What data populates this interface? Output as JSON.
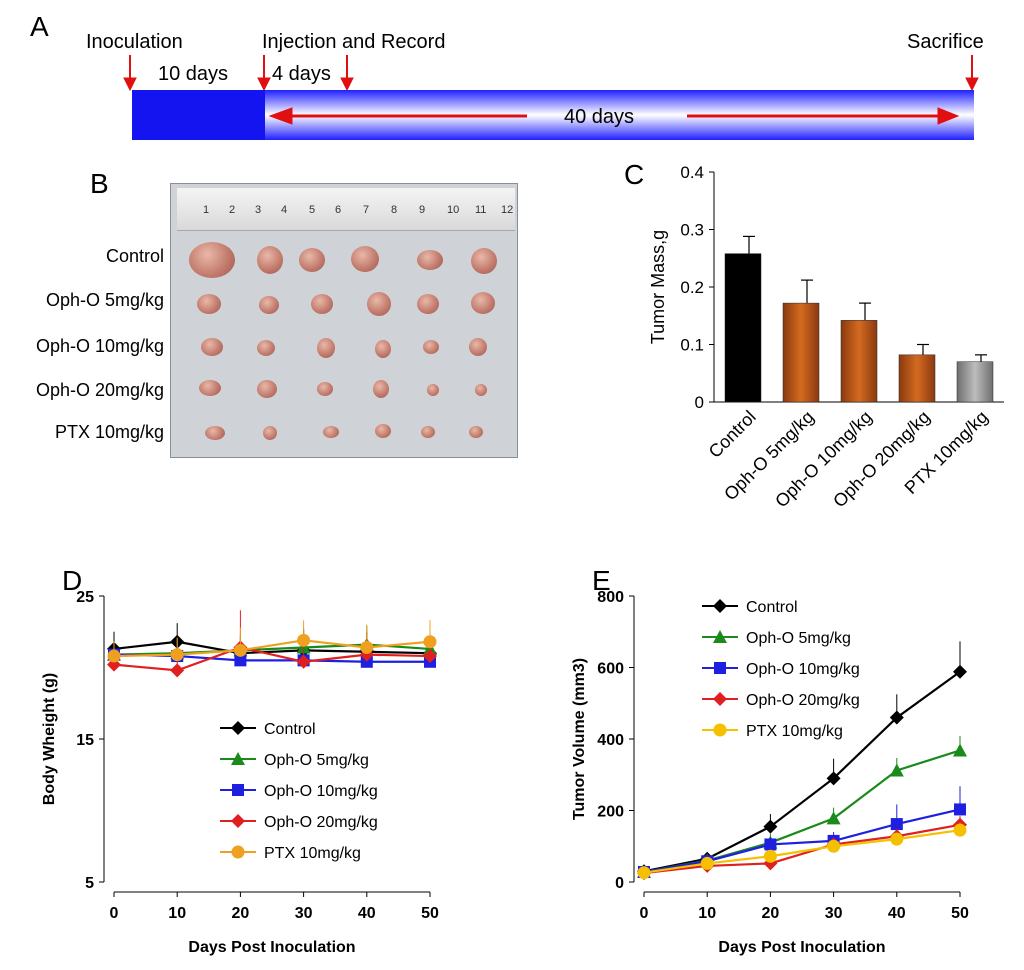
{
  "panels": {
    "a": "A",
    "b": "B",
    "c": "C",
    "d": "D",
    "e": "E"
  },
  "timeline": {
    "inoculation": "Inoculation",
    "injection": "Injection and Record",
    "sacrifice": "Sacrifice",
    "days10": "10 days",
    "days4": "4 days",
    "days40": "40 days"
  },
  "photo": {
    "row_labels": [
      "Control",
      "Oph-O 5mg/kg",
      "Oph-O 10mg/kg",
      "Oph-O 20mg/kg",
      "PTX 10mg/kg"
    ],
    "ruler_numbers": [
      "1",
      "2",
      "3",
      "4",
      "5",
      "6",
      "7",
      "8",
      "9",
      "10",
      "11",
      "12"
    ]
  },
  "chart_data": [
    {
      "id": "C",
      "type": "bar",
      "ylabel": "Tumor Mass,g",
      "ylim": [
        0,
        0.4
      ],
      "yticks": [
        "0",
        "0.1",
        "0.2",
        "0.3",
        "0.4"
      ],
      "categories": [
        "Control",
        "Oph-O 5mg/kg",
        "Oph-O 10mg/kg",
        "Oph-O 20mg/kg",
        "PTX 10mg/kg"
      ],
      "values": [
        0.258,
        0.172,
        0.142,
        0.082,
        0.07
      ],
      "errors": [
        0.03,
        0.04,
        0.03,
        0.018,
        0.012
      ],
      "colors": [
        "#000000",
        "#8a3a10",
        "#8a3a10",
        "#8a3a10",
        "#6e6e6e"
      ]
    },
    {
      "id": "D",
      "type": "line",
      "xlabel": "Days Post Inoculation",
      "ylabel": "Body Wheight (g)",
      "x": [
        0,
        10,
        20,
        30,
        40,
        50
      ],
      "xticks": [
        "0",
        "10",
        "20",
        "30",
        "40",
        "50"
      ],
      "ylim": [
        5,
        25
      ],
      "yticks": [
        "5",
        "15",
        "25"
      ],
      "series": [
        {
          "name": "Control",
          "color": "#000000",
          "marker": "diamond",
          "values": [
            21.3,
            21.8,
            21.0,
            21.2,
            21.1,
            21.0
          ],
          "errors": [
            1.2,
            1.3,
            1.0,
            1.5,
            1.4,
            1.2
          ]
        },
        {
          "name": "Oph-O 5mg/kg",
          "color": "#1a8a1a",
          "marker": "triangle",
          "values": [
            20.9,
            21.0,
            21.2,
            21.4,
            21.6,
            21.3
          ],
          "errors": [
            0.8,
            1.0,
            1.1,
            1.2,
            1.3,
            1.0
          ]
        },
        {
          "name": "Oph-O 10mg/kg",
          "color": "#1f1fe0",
          "marker": "square",
          "values": [
            20.9,
            20.8,
            20.5,
            20.5,
            20.4,
            20.4
          ],
          "errors": [
            0.9,
            1.0,
            1.0,
            1.1,
            1.0,
            0.9
          ]
        },
        {
          "name": "Oph-O 20mg/kg",
          "color": "#e01f1f",
          "marker": "diamond",
          "values": [
            20.2,
            19.8,
            21.4,
            20.4,
            20.9,
            20.8
          ],
          "errors": [
            1.0,
            1.1,
            2.6,
            1.2,
            1.5,
            1.3
          ]
        },
        {
          "name": "PTX 10mg/kg",
          "color": "#f0a020",
          "marker": "circle",
          "values": [
            20.8,
            20.9,
            21.2,
            21.9,
            21.4,
            21.8
          ],
          "errors": [
            1.0,
            1.2,
            1.6,
            1.4,
            1.6,
            1.5
          ]
        }
      ]
    },
    {
      "id": "E",
      "type": "line",
      "xlabel": "Days Post Inoculation",
      "ylabel": "Tumor Volume (mm3)",
      "x": [
        0,
        10,
        20,
        30,
        40,
        50
      ],
      "xticks": [
        "0",
        "10",
        "20",
        "30",
        "40",
        "50"
      ],
      "ylim": [
        0,
        800
      ],
      "yticks": [
        "0",
        "200",
        "400",
        "600",
        "800"
      ],
      "series": [
        {
          "name": "Control",
          "color": "#000000",
          "marker": "diamond",
          "values": [
            30,
            65,
            155,
            290,
            460,
            588
          ],
          "errors": [
            8,
            15,
            35,
            55,
            65,
            85
          ]
        },
        {
          "name": "Oph-O 5mg/kg",
          "color": "#1a8a1a",
          "marker": "triangle",
          "values": [
            28,
            60,
            110,
            178,
            312,
            368
          ],
          "errors": [
            8,
            12,
            25,
            30,
            35,
            40
          ]
        },
        {
          "name": "Oph-O 10mg/kg",
          "color": "#1f1fe0",
          "marker": "square",
          "values": [
            28,
            58,
            105,
            115,
            162,
            203
          ],
          "errors": [
            8,
            10,
            20,
            25,
            55,
            65
          ]
        },
        {
          "name": "Oph-O 20mg/kg",
          "color": "#e01f1f",
          "marker": "diamond",
          "values": [
            25,
            45,
            52,
            105,
            128,
            160
          ],
          "errors": [
            6,
            8,
            12,
            15,
            20,
            25
          ]
        },
        {
          "name": "PTX 10mg/kg",
          "color": "#f5c000",
          "marker": "circle",
          "values": [
            26,
            52,
            72,
            100,
            120,
            145
          ],
          "errors": [
            6,
            8,
            12,
            15,
            18,
            20
          ]
        }
      ]
    }
  ]
}
